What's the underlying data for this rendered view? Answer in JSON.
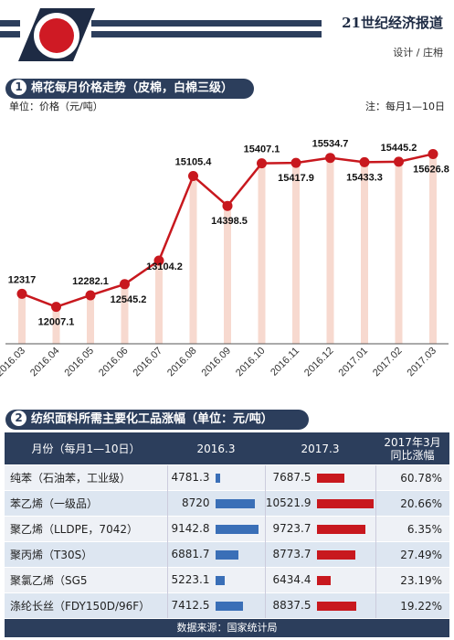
{
  "header": {
    "brand": "21世纪经济报道",
    "credit": "设计 / 庄枏"
  },
  "section1": {
    "num": "1",
    "title": "棉花每月价格走势（皮棉，白棉三级）",
    "unit_label": "单位：价格（元/吨）",
    "note": "注：每月1—10日"
  },
  "chart_data": {
    "type": "line",
    "title": "棉花每月价格走势（皮棉，白棉三级）",
    "ylabel": "单位：价格（元/吨）",
    "categories": [
      "2016.03",
      "2016.04",
      "2016.05",
      "2016.06",
      "2016.07",
      "2016.08",
      "2016.09",
      "2016.10",
      "2016.11",
      "2016.12",
      "2017.01",
      "2017.02",
      "2017.03"
    ],
    "values": [
      12317,
      12007.1,
      12282.1,
      12545.2,
      13104.2,
      15105.4,
      14398.5,
      15407.1,
      15417.9,
      15534.7,
      15433.3,
      15445.2,
      15626.8
    ],
    "labels": [
      "12317",
      "12007.1",
      "12282.1",
      "12545.2",
      "13104.2",
      "15105.4",
      "14398.5",
      "15407.1",
      "15417.9",
      "15534.7",
      "15433.3",
      "15445.2",
      "15626.8"
    ],
    "colors": {
      "line": "#c8181e",
      "bar": "#f7d9cf"
    }
  },
  "section2": {
    "num": "2",
    "title": "纺织面料所需主要化工品涨幅（单位：元/吨）"
  },
  "table": {
    "headers": {
      "month": "月份（每月1—10日）",
      "col2016": "2016.3",
      "col2017": "2017.3",
      "rate1": "2017年3月",
      "rate2": "同比涨幅"
    },
    "rows": [
      {
        "name": "纯苯（石油苯，工业级）",
        "v2016": "4781.3",
        "n2016": 4781.3,
        "v2017": "7687.5",
        "n2017": 7687.5,
        "rate": "60.78%"
      },
      {
        "name": "苯乙烯（一级品）",
        "v2016": "8720",
        "n2016": 8720,
        "v2017": "10521.9",
        "n2017": 10521.9,
        "rate": "20.66%"
      },
      {
        "name": "聚乙烯（LLDPE，7042）",
        "v2016": "9142.8",
        "n2016": 9142.8,
        "v2017": "9723.7",
        "n2017": 9723.7,
        "rate": "6.35%"
      },
      {
        "name": "聚丙烯（T30S）",
        "v2016": "6881.7",
        "n2016": 6881.7,
        "v2017": "8773.7",
        "n2017": 8773.7,
        "rate": "27.49%"
      },
      {
        "name": "聚氯乙烯（SG5",
        "v2016": "5223.1",
        "n2016": 5223.1,
        "v2017": "6434.4",
        "n2017": 6434.4,
        "rate": "23.19%"
      },
      {
        "name": "涤纶长丝（FDY150D/96F）",
        "v2016": "7412.5",
        "n2016": 7412.5,
        "v2017": "8837.5",
        "n2017": 8837.5,
        "rate": "19.22%"
      }
    ],
    "colors": {
      "bar2016": "#3a6fb7",
      "bar2017": "#c8181e"
    }
  },
  "footer": {
    "source": "数据来源：国家统计局"
  }
}
